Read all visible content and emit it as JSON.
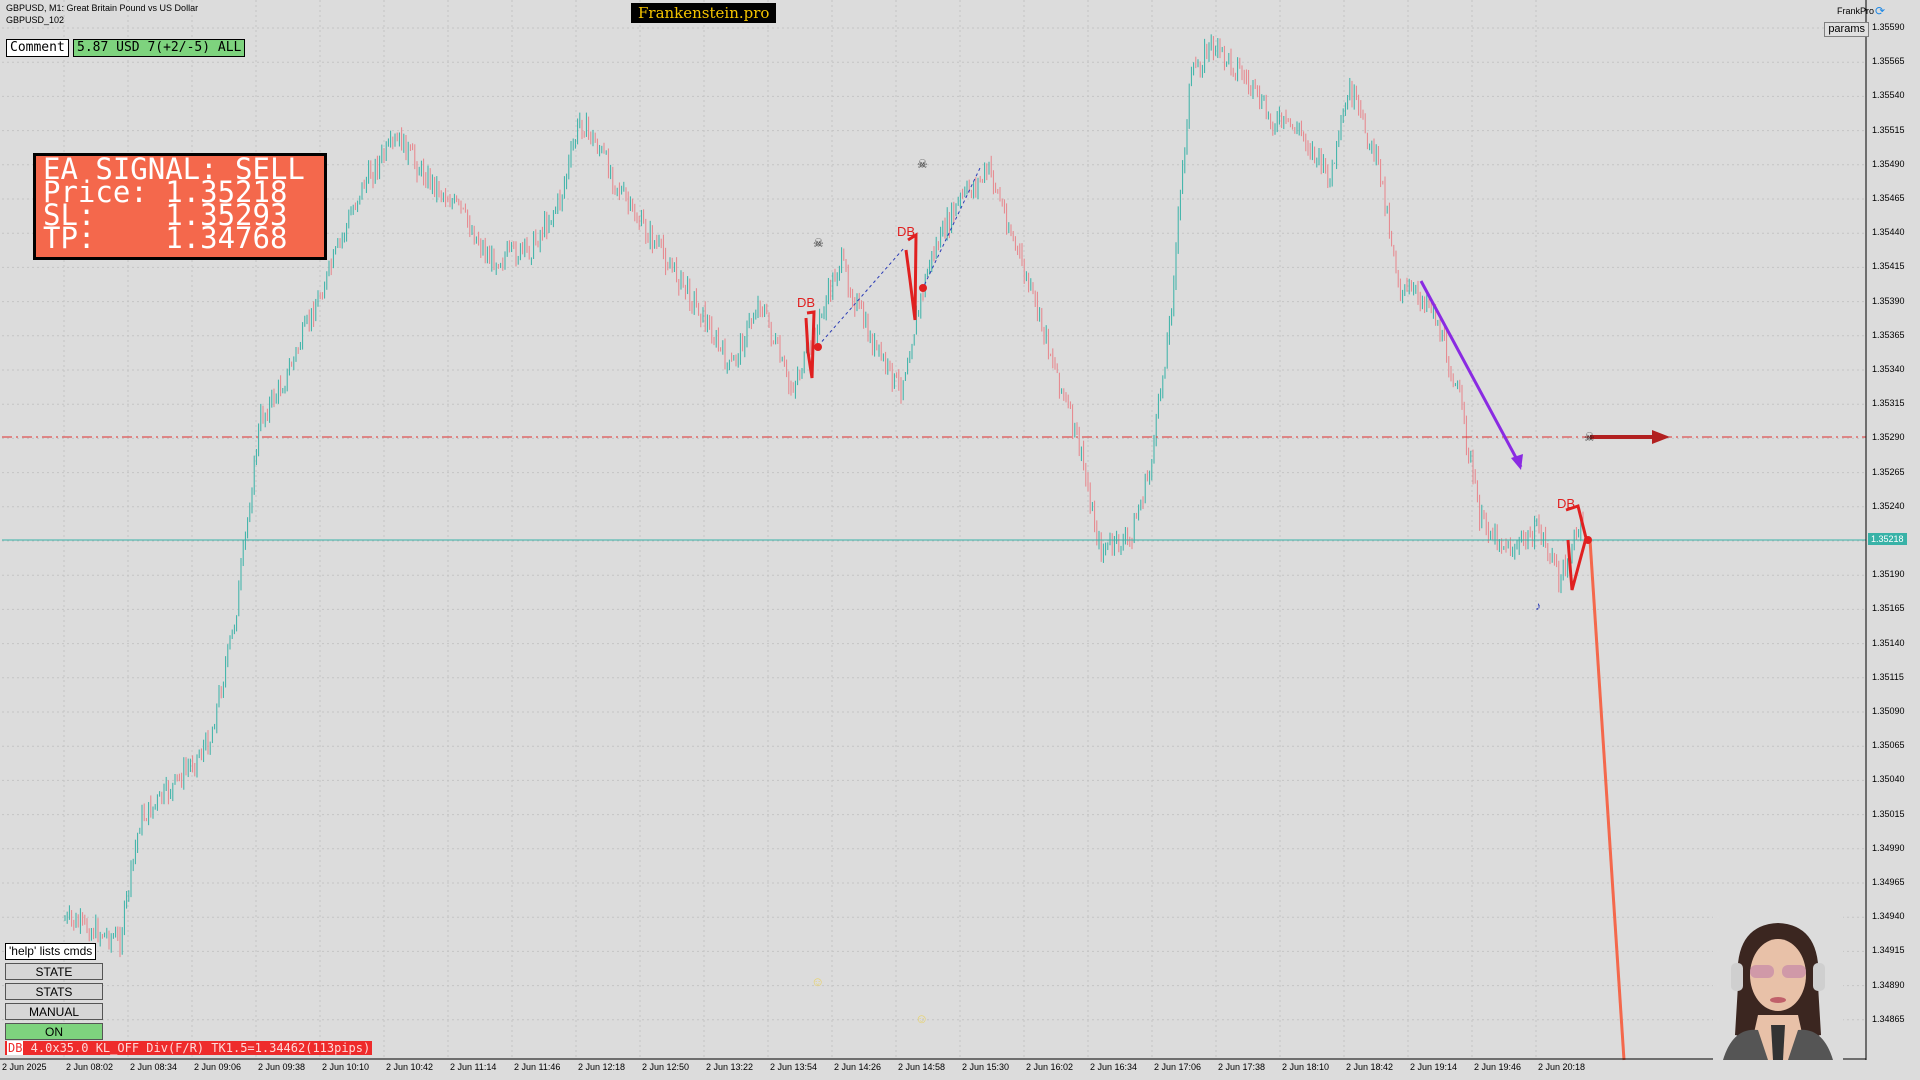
{
  "header": {
    "symbol_line": "GBPUSD, M1:  Great Britain Pound vs US Dollar",
    "subtitle": "GBPUSD_102",
    "watermark": "Frankenstein.pro",
    "expert_name": "FrankPro",
    "params_label": "params"
  },
  "comment": {
    "label": "Comment",
    "stats": "5.87 USD 7(+2/-5) ALL"
  },
  "signal": {
    "line1": "EA SIGNAL: SELL",
    "line2": "Price: 1.35218",
    "line3": "SL:    1.35293",
    "line4": "TP:    1.34768"
  },
  "current_price": "1.35218",
  "price_axis": [
    "1.35590",
    "1.35565",
    "1.35540",
    "1.35515",
    "1.35490",
    "1.35465",
    "1.35440",
    "1.35415",
    "1.35390",
    "1.35365",
    "1.35340",
    "1.35315",
    "1.35290",
    "1.35265",
    "1.35240",
    "1.35215",
    "1.35190",
    "1.35165",
    "1.35140",
    "1.35115",
    "1.35090",
    "1.35065",
    "1.35040",
    "1.35015",
    "1.34990",
    "1.34965",
    "1.34940",
    "1.34915",
    "1.34890",
    "1.34865"
  ],
  "time_axis": [
    "2 Jun 2025",
    "2 Jun 08:02",
    "2 Jun 08:34",
    "2 Jun 09:06",
    "2 Jun 09:38",
    "2 Jun 10:10",
    "2 Jun 10:42",
    "2 Jun 11:14",
    "2 Jun 11:46",
    "2 Jun 12:18",
    "2 Jun 12:50",
    "2 Jun 13:22",
    "2 Jun 13:54",
    "2 Jun 14:26",
    "2 Jun 14:58",
    "2 Jun 15:30",
    "2 Jun 16:02",
    "2 Jun 16:34",
    "2 Jun 17:06",
    "2 Jun 17:38",
    "2 Jun 18:10",
    "2 Jun 18:42",
    "2 Jun 19:14",
    "2 Jun 19:46",
    "2 Jun 20:18"
  ],
  "pattern_labels": [
    "DB",
    "DB",
    "DB"
  ],
  "controls": {
    "help": "'help' lists cmds",
    "state": "STATE",
    "stats": "STATS",
    "manual": "MANUAL",
    "on": "ON"
  },
  "status_bar": {
    "tag": "DB",
    "text": " 4.0x35.0 KL_OFF Div(F/R) TK1.5=1.34462(113pips)"
  },
  "colors": {
    "background": "#dcdcdc",
    "bull_candle": "#38b2a7",
    "bear_candle": "#e8838a",
    "signal_panel": "#f4684c",
    "sl_line": "#e03030",
    "current_price_line": "#38b2a7"
  },
  "icons": [
    "refresh-icon",
    "skull-icon",
    "smiley-icon",
    "avatar"
  ]
}
